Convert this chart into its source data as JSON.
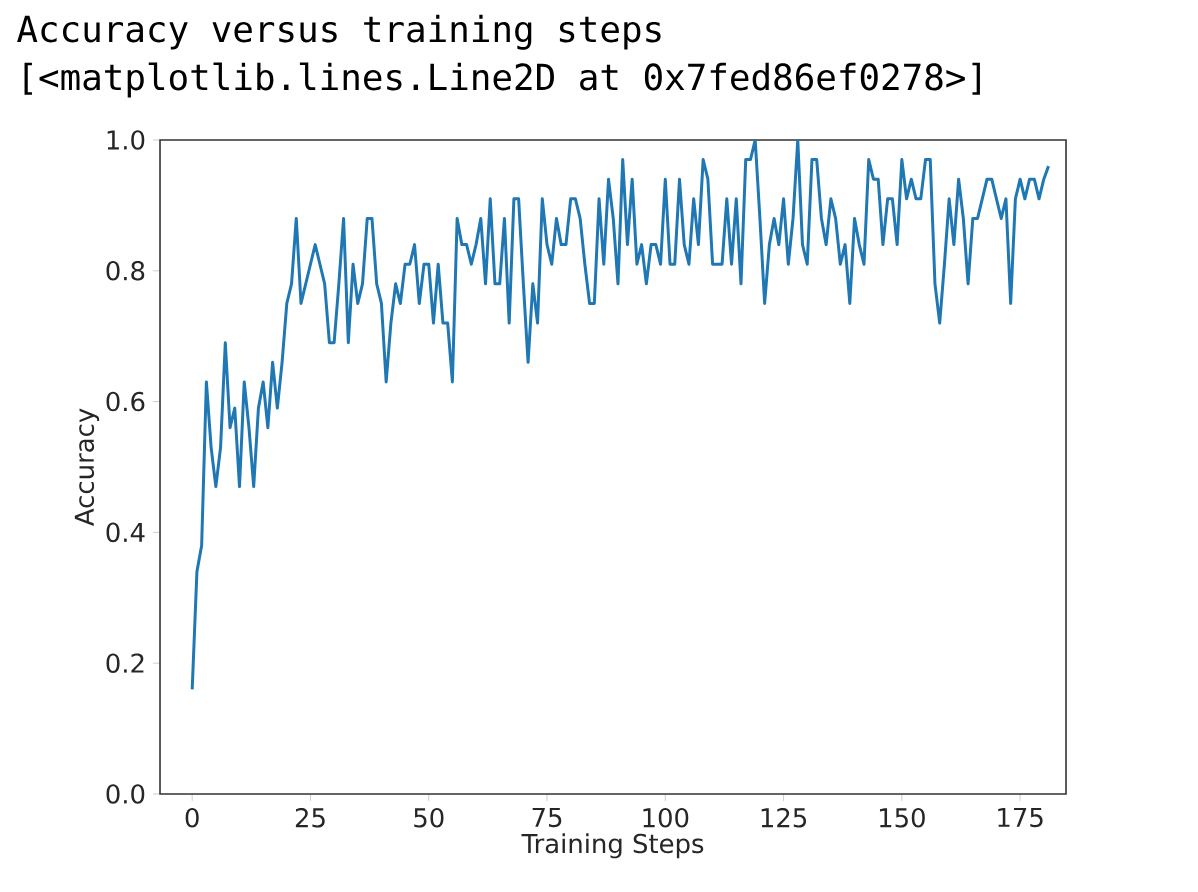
{
  "chart_data": {
    "type": "line",
    "title": "Accuracy versus training steps",
    "annotations": [
      "[<matplotlib.lines.Line2D at 0x7fed86ef0278>]"
    ],
    "xlabel": "Training Steps",
    "ylabel": "Accuracy",
    "color": "#1f77b4",
    "x": [
      0,
      1,
      2,
      3,
      4,
      5,
      6,
      7,
      8,
      9,
      10,
      11,
      12,
      13,
      14,
      15,
      16,
      17,
      18,
      19,
      20,
      21,
      22,
      23,
      24,
      25,
      26,
      27,
      28,
      29,
      30,
      31,
      32,
      33,
      34,
      35,
      36,
      37,
      38,
      39,
      40,
      41,
      42,
      43,
      44,
      45,
      46,
      47,
      48,
      49,
      50,
      51,
      52,
      53,
      54,
      55,
      56,
      57,
      58,
      59,
      60,
      61,
      62,
      63,
      64,
      65,
      66,
      67,
      68,
      69,
      70,
      71,
      72,
      73,
      74,
      75,
      76,
      77,
      78,
      79,
      80,
      81,
      82,
      83,
      84,
      85,
      86,
      87,
      88,
      89,
      90,
      91,
      92,
      93,
      94,
      95,
      96,
      97,
      98,
      99,
      100,
      101,
      102,
      103,
      104,
      105,
      106,
      107,
      108,
      109,
      110,
      111,
      112,
      113,
      114,
      115,
      116,
      117,
      118,
      119,
      120,
      121,
      122,
      123,
      124,
      125,
      126,
      127,
      128,
      129,
      130,
      131,
      132,
      133,
      134,
      135,
      136,
      137,
      138,
      139,
      140,
      141,
      142,
      143,
      144,
      145,
      146,
      147,
      148,
      149,
      150,
      151,
      152,
      153,
      154,
      155,
      156,
      157,
      158,
      159,
      160,
      161,
      162,
      163,
      164,
      165,
      166,
      167,
      168,
      169,
      170,
      171,
      172,
      173,
      174,
      175,
      176,
      177,
      178,
      179,
      180,
      181
    ],
    "values": [
      0.16,
      0.34,
      0.38,
      0.63,
      0.53,
      0.47,
      0.53,
      0.69,
      0.56,
      0.59,
      0.47,
      0.63,
      0.56,
      0.47,
      0.59,
      0.63,
      0.56,
      0.66,
      0.59,
      0.66,
      0.75,
      0.78,
      0.88,
      0.75,
      0.78,
      0.81,
      0.84,
      0.81,
      0.78,
      0.69,
      0.69,
      0.78,
      0.88,
      0.69,
      0.81,
      0.75,
      0.78,
      0.88,
      0.88,
      0.78,
      0.75,
      0.63,
      0.72,
      0.78,
      0.75,
      0.81,
      0.81,
      0.84,
      0.75,
      0.81,
      0.81,
      0.72,
      0.81,
      0.72,
      0.72,
      0.63,
      0.88,
      0.84,
      0.84,
      0.81,
      0.84,
      0.88,
      0.78,
      0.91,
      0.78,
      0.78,
      0.88,
      0.72,
      0.91,
      0.91,
      0.78,
      0.66,
      0.78,
      0.72,
      0.91,
      0.84,
      0.81,
      0.88,
      0.84,
      0.84,
      0.91,
      0.91,
      0.88,
      0.81,
      0.75,
      0.75,
      0.91,
      0.81,
      0.94,
      0.88,
      0.78,
      0.97,
      0.84,
      0.94,
      0.81,
      0.84,
      0.78,
      0.84,
      0.84,
      0.81,
      0.94,
      0.81,
      0.81,
      0.94,
      0.84,
      0.81,
      0.91,
      0.84,
      0.97,
      0.94,
      0.81,
      0.81,
      0.81,
      0.91,
      0.81,
      0.91,
      0.78,
      0.97,
      0.97,
      1.0,
      0.88,
      0.75,
      0.84,
      0.88,
      0.84,
      0.91,
      0.81,
      0.88,
      1.0,
      0.84,
      0.81,
      0.97,
      0.97,
      0.88,
      0.84,
      0.91,
      0.88,
      0.81,
      0.84,
      0.75,
      0.88,
      0.84,
      0.81,
      0.97,
      0.94,
      0.94,
      0.84,
      0.91,
      0.91,
      0.84,
      0.97,
      0.91,
      0.94,
      0.91,
      0.91,
      0.97,
      0.97,
      0.78,
      0.72,
      0.81,
      0.91,
      0.84,
      0.94,
      0.88,
      0.78,
      0.88,
      0.88,
      0.91,
      0.94,
      0.94,
      0.91,
      0.88,
      0.91,
      0.75,
      0.91,
      0.94,
      0.91,
      0.94,
      0.94,
      0.91,
      0.94,
      0.96
    ],
    "xlim": [
      -6.8,
      184.7
    ],
    "ylim": [
      0,
      1
    ],
    "xticks": [
      0,
      25,
      50,
      75,
      100,
      125,
      150,
      175
    ],
    "yticks": [
      {
        "value": 0,
        "label": "0.0"
      },
      {
        "value": 0.2,
        "label": "0.2"
      },
      {
        "value": 0.4,
        "label": "0.4"
      },
      {
        "value": 0.6,
        "label": "0.6"
      },
      {
        "value": 0.8,
        "label": "0.8"
      },
      {
        "value": 1,
        "label": "1.0"
      }
    ]
  }
}
